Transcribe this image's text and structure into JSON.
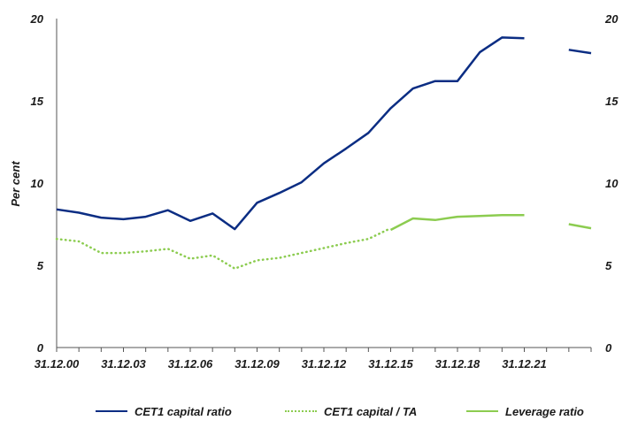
{
  "chart_data": {
    "type": "line",
    "ylabel": "Per cent",
    "ylim": [
      0,
      20
    ],
    "yticks": [
      "0",
      "5",
      "10",
      "15",
      "20"
    ],
    "xtick_labels": [
      "31.12.00",
      "31.12.03",
      "31.12.06",
      "31.12.09",
      "31.12.12",
      "31.12.15",
      "31.12.18",
      "31.12.21"
    ],
    "xtick_years": [
      2000,
      2003,
      2006,
      2009,
      2012,
      2015,
      2018,
      2021
    ],
    "xlim": [
      2000,
      2024
    ],
    "series": [
      {
        "name": "CET1 capital ratio",
        "color": "#0b2d83",
        "style": "solid",
        "segments": [
          [
            [
              2000,
              8.4
            ],
            [
              2001,
              8.2
            ],
            [
              2002,
              7.9
            ],
            [
              2003,
              7.8
            ],
            [
              2004,
              7.95
            ],
            [
              2005,
              8.35
            ],
            [
              2006,
              7.7
            ],
            [
              2007,
              8.15
            ],
            [
              2008,
              7.2
            ],
            [
              2009,
              8.8
            ],
            [
              2010,
              9.4
            ],
            [
              2011,
              10.05
            ],
            [
              2012,
              11.2
            ],
            [
              2013,
              12.1
            ],
            [
              2014,
              13.05
            ],
            [
              2015,
              14.55
            ],
            [
              2016,
              15.75
            ],
            [
              2017,
              16.2
            ],
            [
              2018,
              16.2
            ],
            [
              2019,
              17.95
            ],
            [
              2020,
              18.85
            ],
            [
              2021,
              18.8
            ]
          ],
          [
            [
              2023,
              18.1
            ],
            [
              2024,
              17.9
            ]
          ]
        ]
      },
      {
        "name": "CET1 capital / TA",
        "color": "#8ccc50",
        "style": "dotted",
        "segments": [
          [
            [
              2000,
              6.6
            ],
            [
              2001,
              6.45
            ],
            [
              2002,
              5.75
            ],
            [
              2003,
              5.75
            ],
            [
              2004,
              5.85
            ],
            [
              2005,
              6.0
            ],
            [
              2006,
              5.4
            ],
            [
              2007,
              5.6
            ],
            [
              2008,
              4.8
            ],
            [
              2009,
              5.3
            ],
            [
              2010,
              5.45
            ],
            [
              2011,
              5.75
            ],
            [
              2012,
              6.05
            ],
            [
              2013,
              6.35
            ],
            [
              2014,
              6.6
            ],
            [
              2015,
              7.25
            ]
          ]
        ]
      },
      {
        "name": "Leverage ratio",
        "color": "#8ccc50",
        "style": "solid",
        "segments": [
          [
            [
              2015,
              7.15
            ],
            [
              2016,
              7.85
            ],
            [
              2017,
              7.75
            ],
            [
              2018,
              7.95
            ],
            [
              2019,
              8.0
            ],
            [
              2020,
              8.05
            ],
            [
              2021,
              8.05
            ]
          ],
          [
            [
              2023,
              7.5
            ],
            [
              2024,
              7.25
            ]
          ]
        ]
      }
    ],
    "legend": [
      "CET1 capital ratio",
      "CET1 capital / TA",
      "Leverage ratio"
    ],
    "legend_position": "bottom",
    "grid": false
  }
}
